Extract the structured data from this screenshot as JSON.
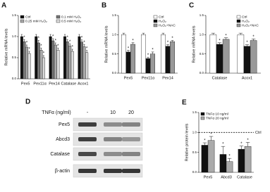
{
  "chart_data": [
    {
      "type": "bar",
      "panel": "A",
      "ylabel": "Relative mRNA levels",
      "legend": "top-left",
      "categories": [
        "Pex5",
        "Pex11α",
        "Pex14",
        "Catalase",
        "Acox1"
      ],
      "series": [
        {
          "name": "Ctrl",
          "color": "#111111",
          "values": [
            1,
            1,
            1,
            1,
            1
          ],
          "errors": [
            0.05,
            0.05,
            0.05,
            0.05,
            0.05
          ],
          "significance": [
            null,
            null,
            null,
            null,
            null
          ]
        },
        {
          "name": "0.1 mM H₂O₂",
          "color": "#777777",
          "values": [
            0.88,
            0.85,
            0.9,
            0.88,
            0.87
          ],
          "errors": [
            0.05,
            0.06,
            0.05,
            0.05,
            0.05
          ],
          "significance": [
            "*",
            "*",
            "*",
            "*",
            "*"
          ]
        },
        {
          "name": "0.25 mM H₂O₂",
          "color": "#aaaaaa",
          "values": [
            0.75,
            0.68,
            0.8,
            0.78,
            0.76
          ],
          "errors": [
            0.05,
            0.05,
            0.05,
            0.05,
            0.05
          ],
          "significance": [
            "*",
            "*",
            "*",
            "*",
            "*"
          ]
        },
        {
          "name": "0.5 mM H₂O₂",
          "color": "#dddddd",
          "values": [
            0.6,
            0.5,
            0.68,
            0.65,
            0.62
          ],
          "errors": [
            0.05,
            0.05,
            0.05,
            0.05,
            0.05
          ],
          "significance": [
            "*",
            "*",
            "*",
            "*",
            "*"
          ]
        }
      ],
      "ylim": [
        0,
        1.5
      ],
      "yticks": [
        {
          "value": 0,
          "label": "0.0"
        },
        0.5,
        {
          "value": 1,
          "label": "1.0"
        },
        1.5
      ]
    },
    {
      "type": "bar",
      "panel": "B",
      "ylabel": "Relative mRNA levels",
      "legend": "top-right",
      "categories": [
        "Pex5",
        "Pex11α",
        "Pex14"
      ],
      "series": [
        {
          "name": "Ctrl",
          "color": "#ffffff",
          "values": [
            1,
            1,
            1
          ],
          "errors": [
            0.04,
            0.04,
            0.04
          ],
          "significance": [
            null,
            null,
            null
          ]
        },
        {
          "name": "H₂O₂",
          "color": "#111111",
          "values": [
            0.55,
            0.38,
            0.7
          ],
          "errors": [
            0.04,
            0.03,
            0.04
          ],
          "significance": [
            "*",
            "*",
            "*"
          ]
        },
        {
          "name": "H₂O₂+NAC",
          "color": "#999999",
          "values": [
            0.75,
            0.5,
            0.82
          ],
          "errors": [
            0.04,
            0.05,
            0.03
          ],
          "significance": [
            "*",
            "*",
            "*"
          ]
        }
      ],
      "ylim": [
        0,
        1.5
      ],
      "yticks": [
        {
          "value": 0,
          "label": "0.0"
        },
        0.5,
        {
          "value": 1,
          "label": "1.0"
        },
        1.5
      ]
    },
    {
      "type": "bar",
      "panel": "C",
      "ylabel": "Relative mRNA levels",
      "legend": "top-right",
      "categories": [
        "Catalase",
        "Acox1"
      ],
      "series": [
        {
          "name": "Ctrl",
          "color": "#ffffff",
          "values": [
            1,
            1
          ],
          "errors": [
            0.04,
            0.04
          ],
          "significance": [
            null,
            null
          ]
        },
        {
          "name": "H₂O₂",
          "color": "#111111",
          "values": [
            0.75,
            0.7
          ],
          "errors": [
            0.04,
            0.04
          ],
          "significance": [
            "*",
            "*"
          ]
        },
        {
          "name": "H₂O₂+NAC",
          "color": "#999999",
          "values": [
            0.88,
            0.85
          ],
          "errors": [
            0.04,
            0.04
          ],
          "significance": [
            "*",
            "*"
          ]
        }
      ],
      "ylim": [
        0,
        1.5
      ],
      "yticks": [
        {
          "value": 0,
          "label": "0.0"
        },
        0.5,
        {
          "value": 1,
          "label": "1.0"
        },
        1.5
      ]
    },
    {
      "type": "bar",
      "panel": "E",
      "ylabel": "Relative protein levels",
      "legend": "top-left",
      "categories": [
        "Pex5",
        "Abcd3",
        "Catalase"
      ],
      "series": [
        {
          "name": "TNFα 10 ng/ml",
          "color": "#111111",
          "values": [
            0.68,
            0.45,
            0.58
          ],
          "errors": [
            0.06,
            0.2,
            0.08
          ],
          "significance": [
            "*",
            "*",
            "*"
          ]
        },
        {
          "name": "TNFα 20 ng/ml",
          "color": "#aaaaaa",
          "values": [
            0.8,
            0.27,
            0.65
          ],
          "errors": [
            0.1,
            0.08,
            0.1
          ],
          "significance": [
            "*",
            "*",
            "*"
          ]
        }
      ],
      "reference": {
        "value": 1,
        "label": "Ctrl"
      },
      "ylim": [
        0,
        1.5
      ],
      "yticks": [
        {
          "value": 0,
          "label": "0.0"
        },
        0.5,
        {
          "value": 1,
          "label": "1.0"
        },
        1.5
      ]
    }
  ],
  "blot": {
    "panel": "D",
    "treatment_label": "TNFα (ng/ml)",
    "lanes": [
      "-",
      "10",
      "20"
    ],
    "proteins": [
      "Pex5",
      "Abcd3",
      "Catalase",
      "β-actin"
    ]
  }
}
